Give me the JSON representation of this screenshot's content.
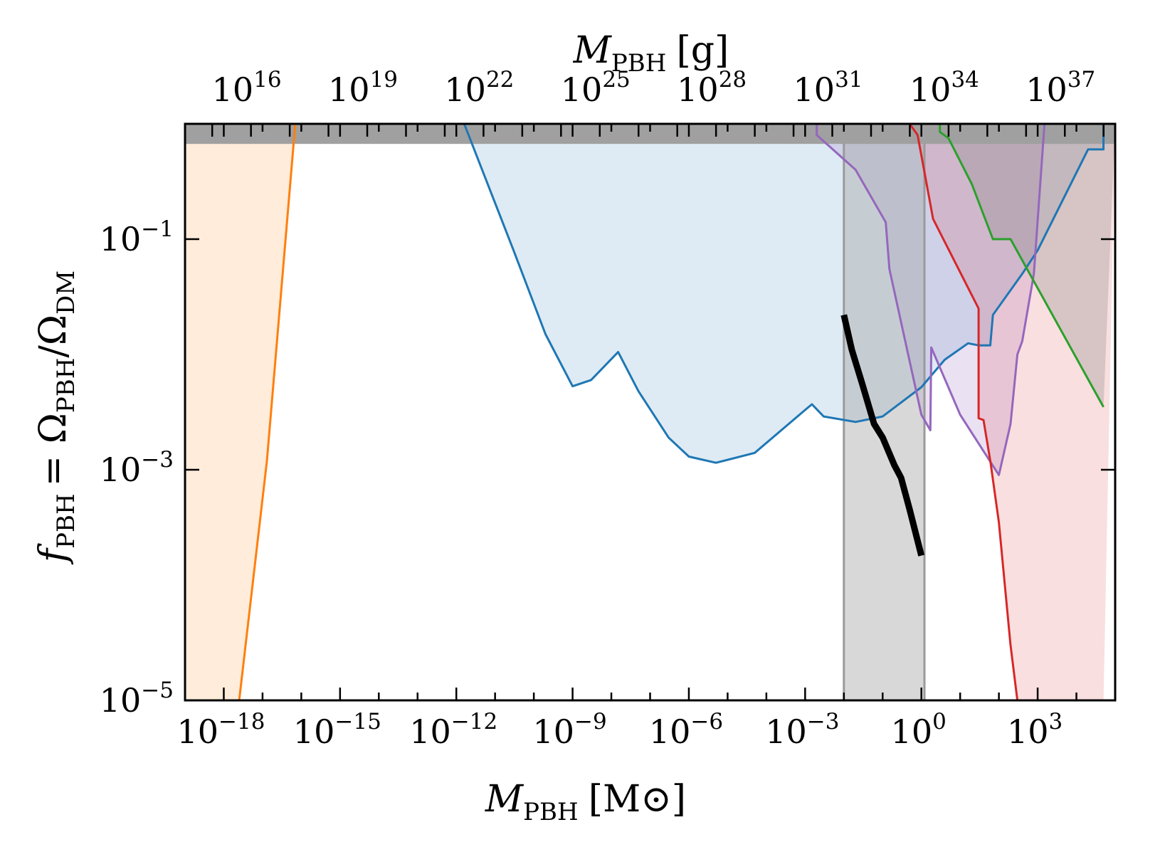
{
  "chart_data": {
    "type": "area",
    "title": "",
    "x_scale": "log",
    "y_scale": "log",
    "xlim": [
      1e-19,
      100000.0
    ],
    "ylim": [
      1e-05,
      1
    ],
    "grid": false,
    "legend": "none",
    "xlabel": {
      "main": "M",
      "sub": "PBH",
      "unit": "[M⊙]"
    },
    "x2label": {
      "main": "M",
      "sub": "PBH",
      "unit": "[g]"
    },
    "ylabel": {
      "main": "f",
      "sub": "PBH",
      "rhs": "= Ω",
      "sub2": "PBH",
      "slash": "/Ω",
      "sub3": "DM"
    },
    "x_ticks": [
      {
        "base": "10",
        "exp": "−18",
        "value": 1e-18
      },
      {
        "base": "10",
        "exp": "−15",
        "value": 1e-15
      },
      {
        "base": "10",
        "exp": "−12",
        "value": 1e-12
      },
      {
        "base": "10",
        "exp": "−9",
        "value": 1e-09
      },
      {
        "base": "10",
        "exp": "−6",
        "value": 1e-06
      },
      {
        "base": "10",
        "exp": "−3",
        "value": 0.001
      },
      {
        "base": "10",
        "exp": "0",
        "value": 1
      },
      {
        "base": "10",
        "exp": "3",
        "value": 1000.0
      }
    ],
    "x2_ticks": [
      {
        "base": "10",
        "exp": "16",
        "value": 1e+16
      },
      {
        "base": "10",
        "exp": "19",
        "value": 1e+19
      },
      {
        "base": "10",
        "exp": "22",
        "value": 1e+22
      },
      {
        "base": "10",
        "exp": "25",
        "value": 1e+25
      },
      {
        "base": "10",
        "exp": "28",
        "value": 1e+28
      },
      {
        "base": "10",
        "exp": "31",
        "value": 1e+31
      },
      {
        "base": "10",
        "exp": "34",
        "value": 1e+34
      },
      {
        "base": "10",
        "exp": "37",
        "value": 1e+37
      }
    ],
    "y_ticks": [
      {
        "base": "10",
        "exp": "−1",
        "value": 0.1
      },
      {
        "base": "10",
        "exp": "−3",
        "value": 0.001
      },
      {
        "base": "10",
        "exp": "−5",
        "value": 1e-05
      }
    ],
    "gram_per_solar_mass": 1.989e+33,
    "series": [
      {
        "color": "#ff7f0e",
        "fill": "#ff7f0e",
        "fill_opacity": 0.15,
        "line_width": 3,
        "fill_side": "left",
        "points": [
          [
            1e-19,
            1e-05
          ],
          [
            2.5e-18,
            1e-05
          ],
          [
            1.3e-17,
            0.0012
          ],
          [
            7e-17,
            1
          ]
        ]
      },
      {
        "color": "#1f77b4",
        "fill": "#1f77b4",
        "fill_opacity": 0.15,
        "line_width": 3,
        "points": [
          [
            1.6e-12,
            1
          ],
          [
            3e-11,
            0.08
          ],
          [
            2e-10,
            0.015
          ],
          [
            1e-09,
            0.0053
          ],
          [
            3e-09,
            0.006
          ],
          [
            1.5e-08,
            0.0105
          ],
          [
            5e-08,
            0.0048
          ],
          [
            3e-07,
            0.0019
          ],
          [
            1e-06,
            0.0013
          ],
          [
            5e-06,
            0.00115
          ],
          [
            5e-05,
            0.0014
          ],
          [
            0.001,
            0.0033
          ],
          [
            0.0015,
            0.0037
          ],
          [
            0.003,
            0.0029
          ],
          [
            0.02,
            0.0026
          ],
          [
            0.1,
            0.0029
          ],
          [
            1,
            0.0052
          ],
          [
            4,
            0.009
          ],
          [
            16,
            0.0125
          ],
          [
            30,
            0.012
          ],
          [
            60,
            0.012
          ],
          [
            70,
            0.022
          ],
          [
            400,
            0.05
          ],
          [
            1000,
            0.08
          ],
          [
            20000.0,
            0.6
          ],
          [
            50000.0,
            0.6
          ],
          [
            50000.0,
            1
          ]
        ]
      },
      {
        "color": "#9467bd",
        "fill": "#9467bd",
        "fill_opacity": 0.2,
        "line_width": 3,
        "points": [
          [
            0.002,
            1
          ],
          [
            0.002,
            0.8
          ],
          [
            0.02,
            0.4
          ],
          [
            0.12,
            0.14
          ],
          [
            0.15,
            0.055
          ],
          [
            1,
            0.003
          ],
          [
            1.7,
            0.0022
          ],
          [
            1.8,
            0.0115
          ],
          [
            10,
            0.003
          ],
          [
            100,
            0.0009
          ],
          [
            200,
            0.0025
          ],
          [
            300,
            0.01
          ],
          [
            400,
            0.013
          ],
          [
            800,
            0.05
          ],
          [
            1500,
            1
          ]
        ]
      },
      {
        "color": "#d62728",
        "fill": "#d62728",
        "fill_opacity": 0.15,
        "line_width": 3,
        "fill_side": "right",
        "points": [
          [
            0.5,
            1
          ],
          [
            0.8,
            0.8
          ],
          [
            2,
            0.15
          ],
          [
            30,
            0.025
          ],
          [
            30,
            0.0028
          ],
          [
            40,
            0.0027
          ],
          [
            60,
            0.0012
          ],
          [
            100,
            0.00035
          ],
          [
            200,
            3e-05
          ],
          [
            300,
            1e-05
          ],
          [
            50000.0,
            1e-05
          ]
        ]
      },
      {
        "color": "#2ca02c",
        "fill": "#808080",
        "fill_opacity": 0.28,
        "line_width": 3,
        "fill_side": "right",
        "points": [
          [
            3,
            1
          ],
          [
            3,
            0.85
          ],
          [
            5,
            0.75
          ],
          [
            20,
            0.3
          ],
          [
            70,
            0.1
          ],
          [
            200,
            0.1
          ],
          [
            50000.0,
            0.0035
          ]
        ]
      }
    ],
    "band": {
      "x": [
        0.01,
        1.2
      ],
      "fill": "#a8a8a8",
      "fill_opacity": 0.45,
      "edge_color": "#9a9a9a"
    },
    "black_curve": {
      "color": "#000000",
      "line_width": 9,
      "points": [
        [
          0.01,
          0.022
        ],
        [
          0.016,
          0.011
        ],
        [
          0.03,
          0.0055
        ],
        [
          0.06,
          0.0025
        ],
        [
          0.1,
          0.0019
        ],
        [
          0.2,
          0.0011
        ],
        [
          0.3,
          0.00085
        ],
        [
          0.5,
          0.00045
        ],
        [
          1,
          0.00018
        ]
      ]
    },
    "top_strip": {
      "y": [
        0.67,
        1
      ],
      "fill": "#a0a0a0"
    }
  }
}
